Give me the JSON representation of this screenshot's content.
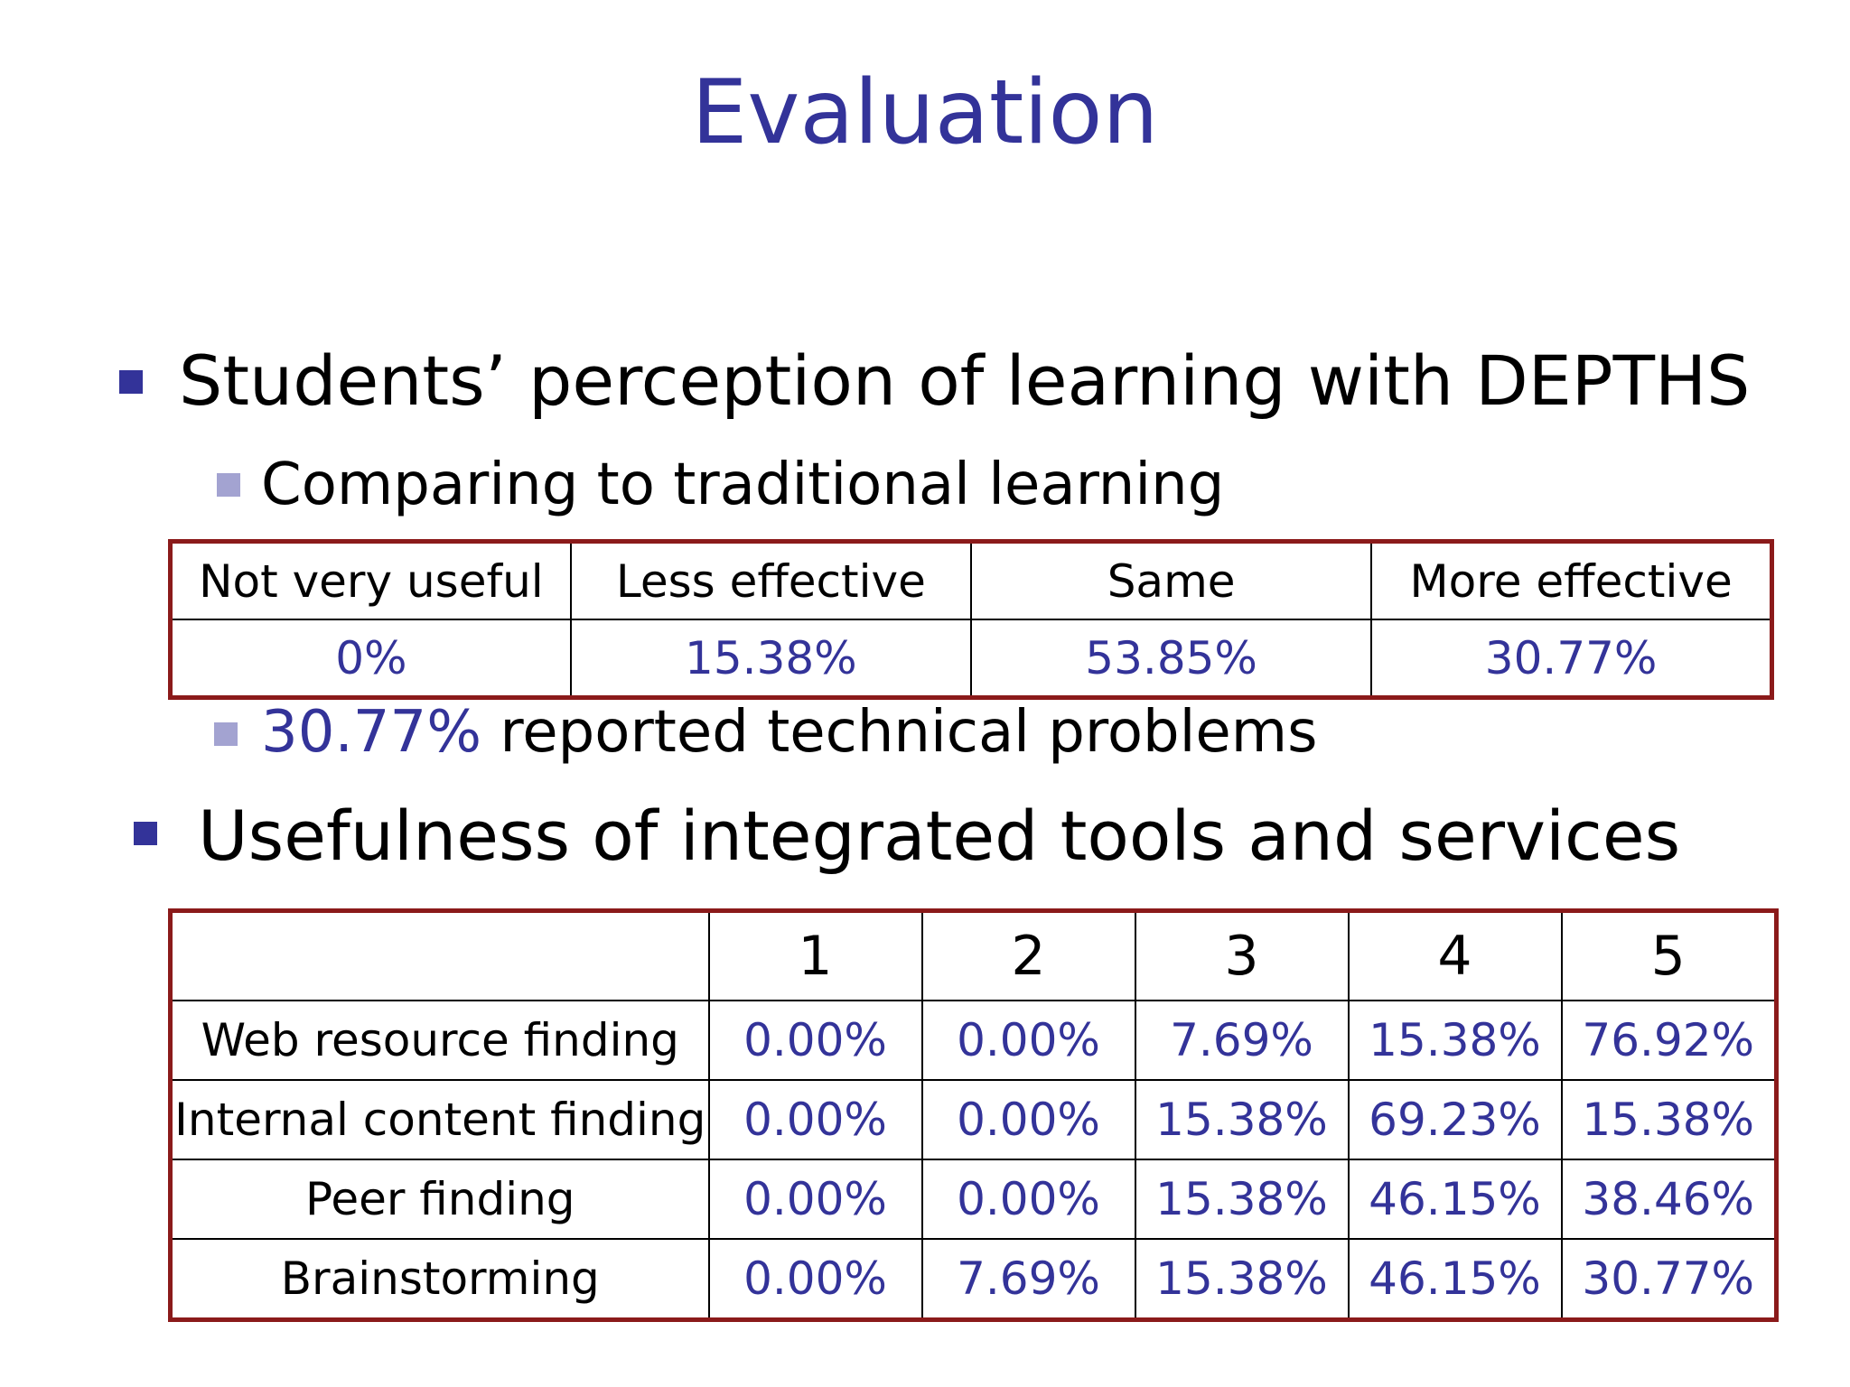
{
  "title": "Evaluation",
  "section1": {
    "heading": "Students’ perception of learning with DEPTHS",
    "subheading": "Comparing to traditional learning",
    "table": {
      "headers": [
        "Not very useful",
        "Less effective",
        "Same",
        "More effective"
      ],
      "values": [
        "0%",
        "15.38%",
        "53.85%",
        "30.77%"
      ]
    },
    "note_value": "30.77%",
    "note_text": " reported technical problems"
  },
  "section2": {
    "heading": "Usefulness of integrated tools and services",
    "table": {
      "corner": "",
      "scale": [
        "1",
        "2",
        "3",
        "4",
        "5"
      ],
      "rows": [
        {
          "label": "Web resource finding",
          "values": [
            "0.00%",
            "0.00%",
            "7.69%",
            "15.38%",
            "76.92%"
          ]
        },
        {
          "label": "Internal content finding",
          "values": [
            "0.00%",
            "0.00%",
            "15.38%",
            "69.23%",
            "15.38%"
          ]
        },
        {
          "label": "Peer finding",
          "values": [
            "0.00%",
            "0.00%",
            "15.38%",
            "46.15%",
            "38.46%"
          ]
        },
        {
          "label": "Brainstorming",
          "values": [
            "0.00%",
            "7.69%",
            "15.38%",
            "46.15%",
            "30.77%"
          ]
        }
      ]
    }
  },
  "colors": {
    "title": "#333399",
    "values": "#333399",
    "table_border": "#8b1a1a",
    "bullet_level1": "#333399",
    "bullet_level2": "#a3a3d1"
  }
}
